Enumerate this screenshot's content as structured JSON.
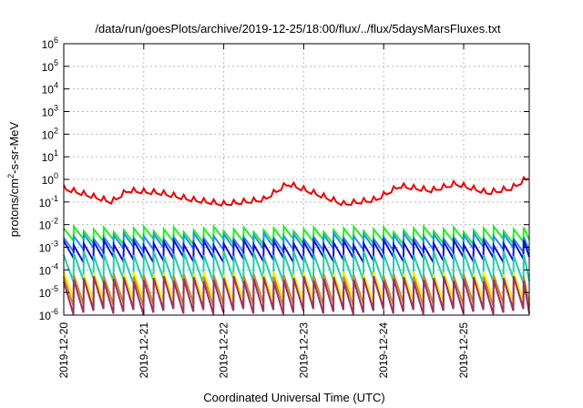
{
  "chart_data": {
    "type": "line",
    "title": "/data/run/goesPlots/archive/2019-12-25/18:00/flux/../flux/5daysMarsFluxes.txt",
    "xlabel": "Coordinated Universal Time (UTC)",
    "ylabel_base": "protons/cm",
    "ylabel_sup": "2",
    "ylabel_rest": "-s-sr-MeV",
    "yscale": "log",
    "ylim_exp": [
      -6,
      6
    ],
    "y_tick_exponents": [
      -6,
      -5,
      -4,
      -3,
      -2,
      -1,
      0,
      1,
      2,
      3,
      4,
      5,
      6
    ],
    "y_tick_base": "10",
    "xlim_days": [
      0,
      5.82
    ],
    "x_ticks": [
      {
        "label": "2019-12-20",
        "day": 0
      },
      {
        "label": "2019-12-21",
        "day": 1
      },
      {
        "label": "2019-12-22",
        "day": 2
      },
      {
        "label": "2019-12-23",
        "day": 3
      },
      {
        "label": "2019-12-24",
        "day": 4
      },
      {
        "label": "2019-12-25",
        "day": 5
      }
    ],
    "grid": true,
    "series": [
      {
        "color": "#ee0000",
        "kind": "red",
        "base": -0.55,
        "amp": 0.4,
        "period": 0.125,
        "drift": [
          [
            0,
            -0.4
          ],
          [
            0.3,
            -0.7
          ],
          [
            0.6,
            -1.0
          ],
          [
            0.8,
            -0.5
          ],
          [
            1.2,
            -0.6
          ],
          [
            1.6,
            -0.9
          ],
          [
            2.0,
            -1.1
          ],
          [
            2.5,
            -0.9
          ],
          [
            2.8,
            -0.2
          ],
          [
            3.2,
            -0.7
          ],
          [
            3.5,
            -1.1
          ],
          [
            3.9,
            -0.9
          ],
          [
            4.2,
            -0.3
          ],
          [
            4.6,
            -0.5
          ],
          [
            4.9,
            -0.2
          ],
          [
            5.3,
            -0.6
          ],
          [
            5.6,
            -0.4
          ],
          [
            5.82,
            0.1
          ]
        ]
      },
      {
        "color": "#22ee22",
        "kind": "sawtooth",
        "top": -2.2,
        "bottom": -2.75,
        "period": 0.125
      },
      {
        "color": "#2288ff",
        "kind": "sawtooth",
        "top": -2.5,
        "bottom": -3.1,
        "period": 0.125
      },
      {
        "color": "#1111cc",
        "kind": "sawtooth",
        "top": -2.8,
        "bottom": -3.55,
        "period": 0.125
      },
      {
        "color": "#22ccaa",
        "kind": "sawtooth",
        "top": -3.3,
        "bottom": -4.5,
        "period": 0.125
      },
      {
        "color": "#ffee00",
        "kind": "sawtooth",
        "top": -4.2,
        "bottom": -5.4,
        "period": 0.125
      },
      {
        "color": "#cc8833",
        "kind": "sawtooth",
        "top": -4.3,
        "bottom": -5.6,
        "period": 0.125
      },
      {
        "color": "#993366",
        "kind": "sawtooth",
        "top": -4.4,
        "bottom": -5.85,
        "period": 0.125
      }
    ]
  }
}
